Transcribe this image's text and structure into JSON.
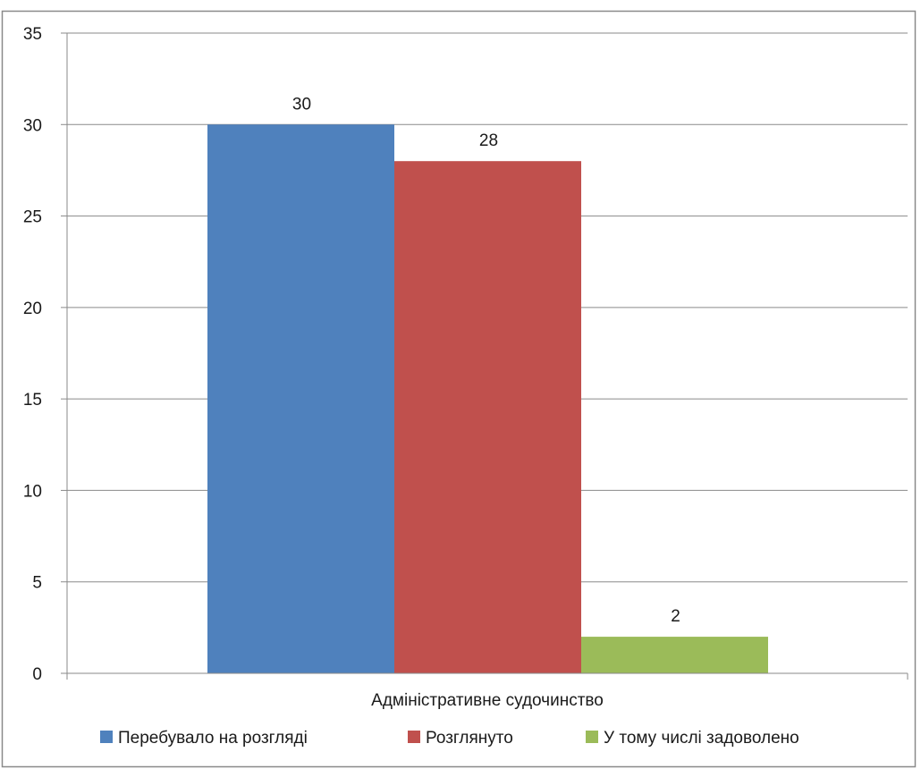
{
  "chart_data": {
    "type": "bar",
    "title": "",
    "xlabel": "",
    "ylabel": "",
    "categories": [
      "Адміністративне судочинство"
    ],
    "series": [
      {
        "name": "Перебувало на розгляді",
        "values": [
          30
        ],
        "color": "#4F81BD"
      },
      {
        "name": "Розглянуто",
        "values": [
          28
        ],
        "color": "#C0504D"
      },
      {
        "name": "У тому числі задоволено",
        "values": [
          2
        ],
        "color": "#9BBB59"
      }
    ],
    "ylim": [
      0,
      35
    ],
    "yticks": [
      "0",
      "5",
      "10",
      "15",
      "20",
      "25",
      "30",
      "35"
    ],
    "data_labels": [
      "30",
      "28",
      "2"
    ],
    "grid": true,
    "legend_position": "bottom"
  }
}
